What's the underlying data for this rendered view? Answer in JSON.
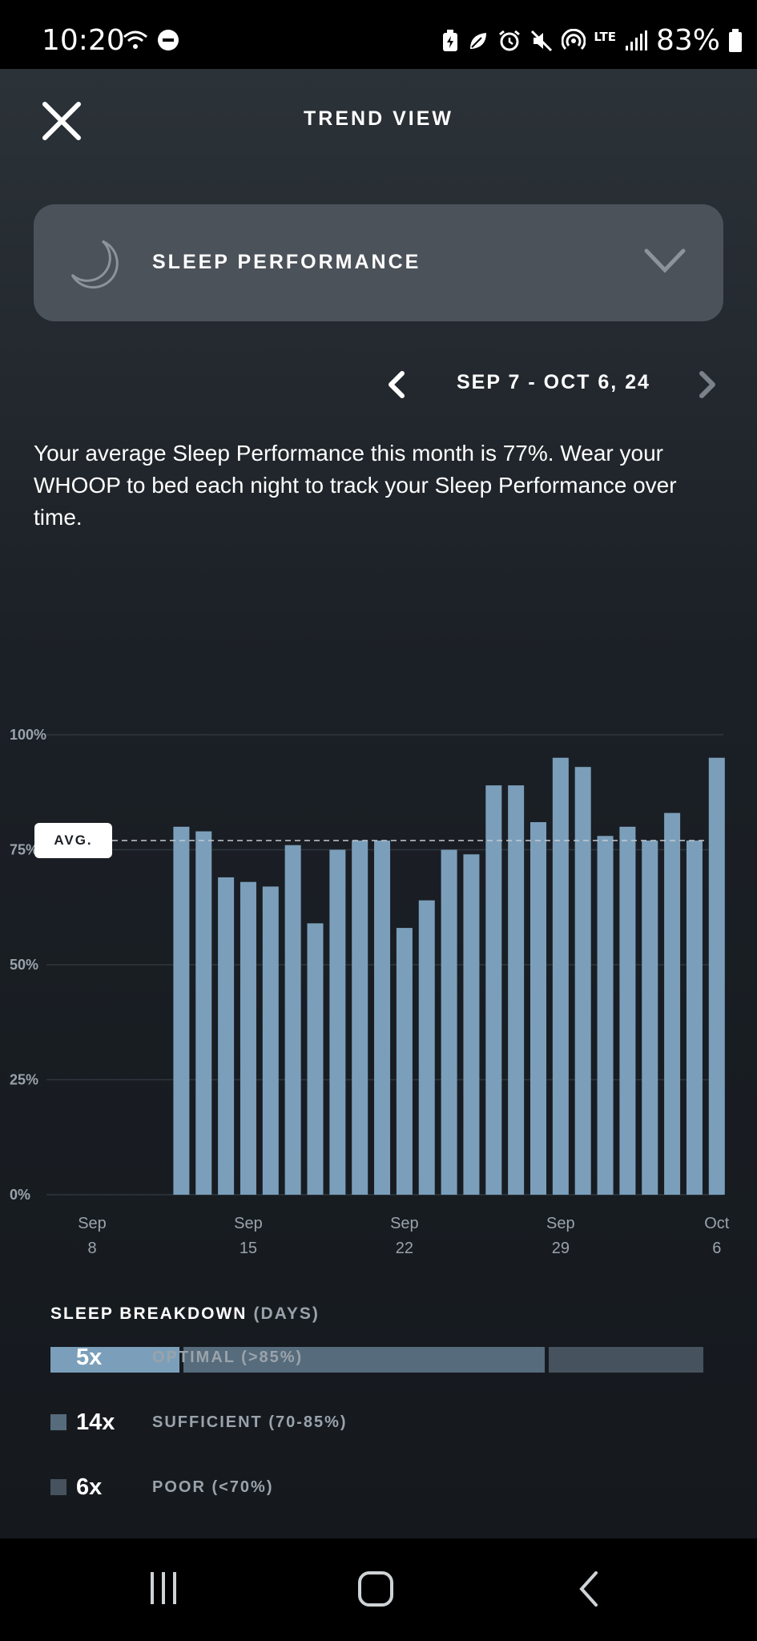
{
  "status_bar": {
    "time": "10:20",
    "battery": "83%",
    "network": "LTE"
  },
  "header": {
    "title": "TREND VIEW"
  },
  "metric": {
    "label": "SLEEP PERFORMANCE"
  },
  "date_range": {
    "label": "SEP 7 - OCT 6, 24"
  },
  "summary": "Your average Sleep Performance this month is 77%. Wear your WHOOP to bed each night to track your Sleep Performance over time.",
  "chart_data": {
    "type": "bar",
    "y_ticks": [
      "100%",
      "75%",
      "50%",
      "25%",
      "0%"
    ],
    "ylim": [
      0,
      100
    ],
    "x_ticks": [
      {
        "month": "Sep",
        "day": "8"
      },
      {
        "month": "Sep",
        "day": "15"
      },
      {
        "month": "Sep",
        "day": "22"
      },
      {
        "month": "Sep",
        "day": "29"
      },
      {
        "month": "Oct",
        "day": "6"
      }
    ],
    "days": [
      "Sep 8",
      "Sep 9",
      "Sep 10",
      "Sep 11",
      "Sep 12",
      "Sep 13",
      "Sep 14",
      "Sep 15",
      "Sep 16",
      "Sep 17",
      "Sep 18",
      "Sep 19",
      "Sep 20",
      "Sep 21",
      "Sep 22",
      "Sep 23",
      "Sep 24",
      "Sep 25",
      "Sep 26",
      "Sep 27",
      "Sep 28",
      "Sep 29",
      "Sep 30",
      "Oct 1",
      "Oct 2",
      "Oct 3",
      "Oct 4",
      "Oct 5",
      "Oct 6"
    ],
    "values": [
      null,
      null,
      null,
      null,
      80,
      79,
      69,
      68,
      67,
      76,
      59,
      75,
      77,
      77,
      58,
      64,
      75,
      74,
      89,
      89,
      81,
      95,
      93,
      78,
      80,
      77,
      83,
      77,
      95
    ],
    "average": 77,
    "average_label": "AVG.",
    "bar_color": "#7b9fbb",
    "grid": true
  },
  "breakdown": {
    "title": "SLEEP BREAKDOWN",
    "unit": "(DAYS)",
    "items": [
      {
        "count": "5x",
        "label": "OPTIMAL (>85%)",
        "days": 5,
        "color": "#7b9fbb"
      },
      {
        "count": "14x",
        "label": "SUFFICIENT (70-85%)",
        "days": 14,
        "color": "#566b7c"
      },
      {
        "count": "6x",
        "label": "POOR (<70%)",
        "days": 6,
        "color": "#46525d"
      }
    ]
  }
}
